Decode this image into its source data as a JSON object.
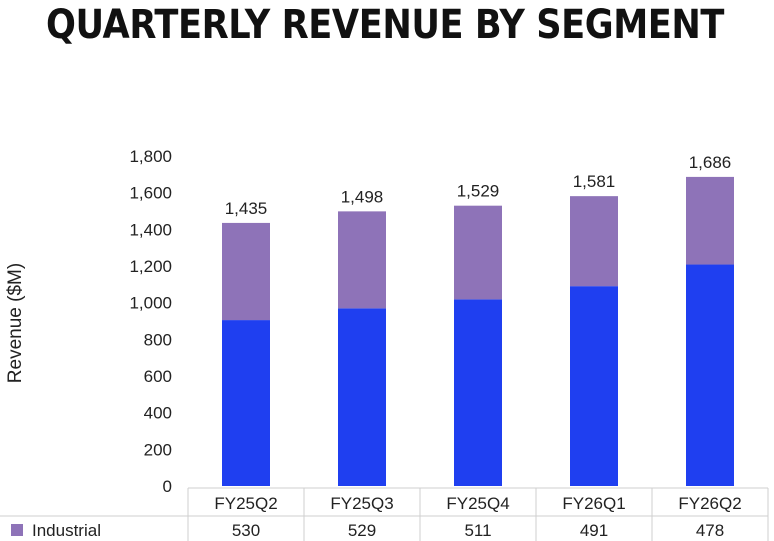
{
  "chart_data": {
    "type": "bar",
    "stacked": true,
    "title": "QUARTERLY REVENUE BY SEGMENT",
    "ylabel": "Revenue ($M)",
    "xlabel": "",
    "ylim": [
      0,
      1800
    ],
    "yticks": [
      "0",
      "200",
      "400",
      "600",
      "800",
      "1,000",
      "1,200",
      "1,400",
      "1,600",
      "1,800"
    ],
    "categories": [
      "FY25Q2",
      "FY25Q3",
      "FY25Q4",
      "FY26Q1",
      "FY26Q2"
    ],
    "totals": [
      1435,
      1498,
      1529,
      1581,
      1686
    ],
    "total_labels": [
      "1,435",
      "1,498",
      "1,529",
      "1,581",
      "1,686"
    ],
    "series": [
      {
        "values": [
          905,
          969,
          1018,
          1090,
          1208
        ],
        "color": "#1f3ff0"
      },
      {
        "name": "Industrial",
        "values": [
          530,
          529,
          511,
          491,
          478
        ],
        "color": "#8e73b8"
      }
    ],
    "table": {
      "rows": [
        {
          "label": "Industrial",
          "color": "#8e73b8",
          "values": [
            "530",
            "529",
            "511",
            "491",
            "478"
          ]
        }
      ]
    },
    "grid": false
  }
}
